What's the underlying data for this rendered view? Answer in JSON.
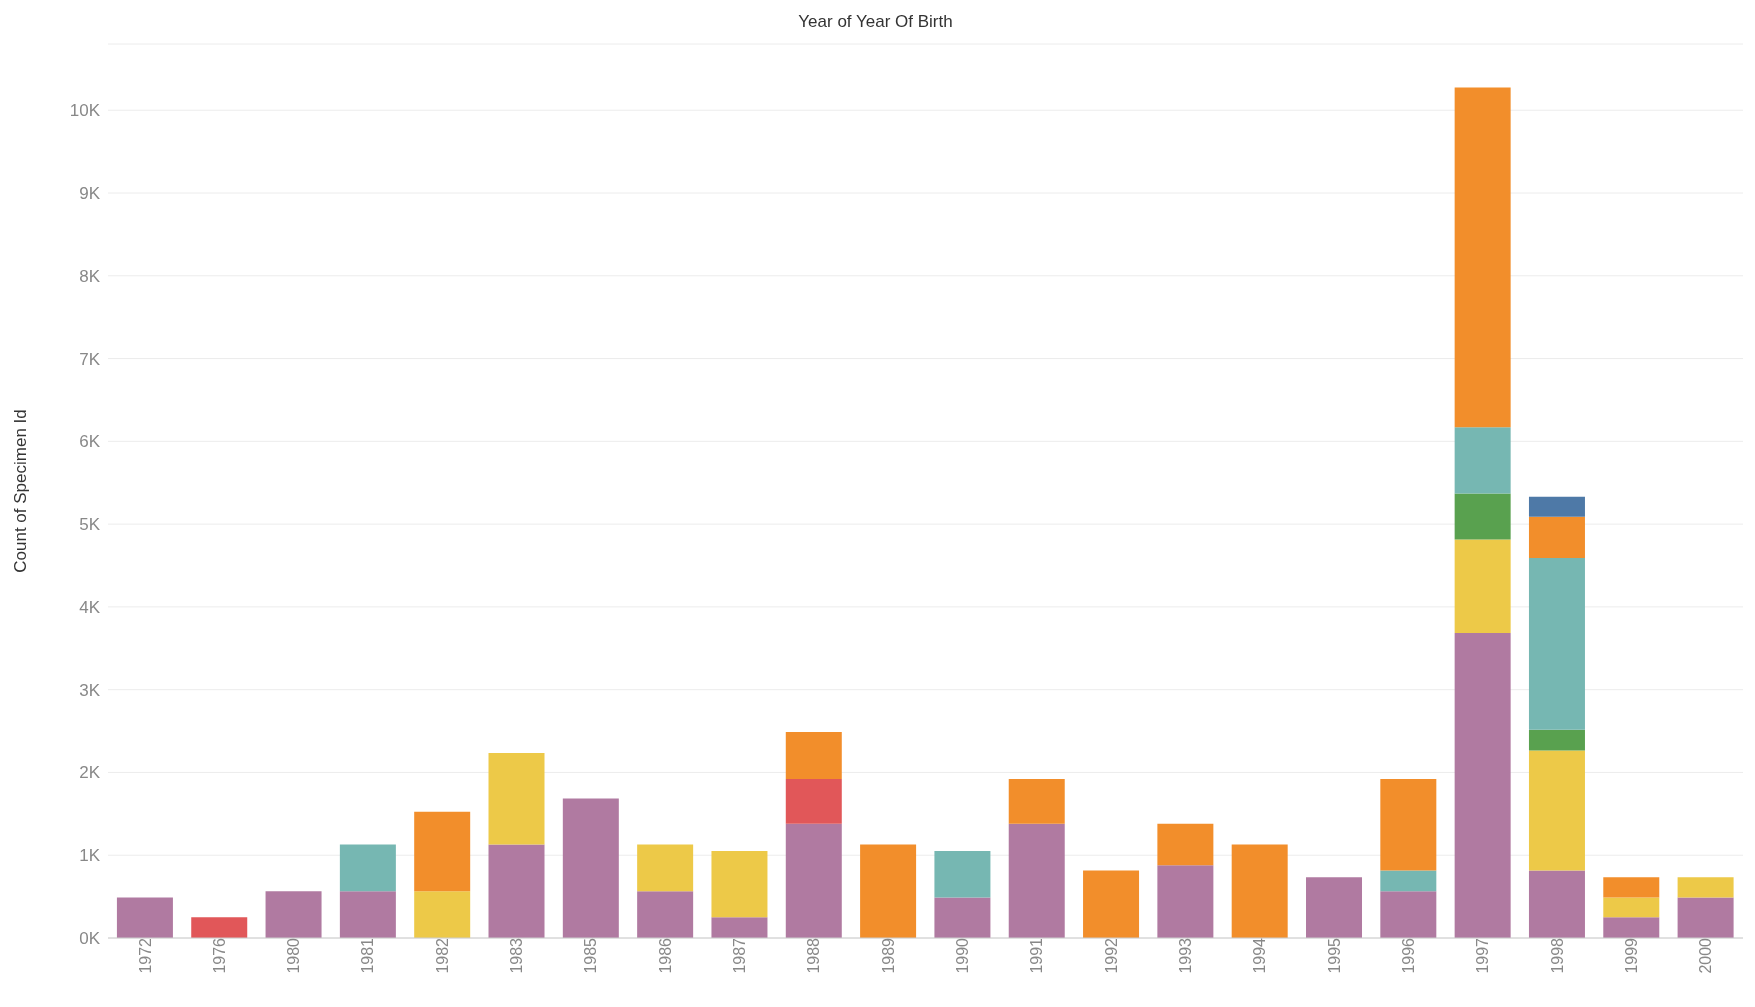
{
  "chart_data": {
    "type": "bar",
    "title": "Year of Year Of Birth",
    "ylabel": "Count of Specimen Id",
    "stacked": true,
    "grid": "y",
    "legend": false,
    "categories": [
      "1972",
      "1976",
      "1980",
      "1981",
      "1982",
      "1983",
      "1985",
      "1986",
      "1987",
      "1988",
      "1989",
      "1990",
      "1991",
      "1992",
      "1993",
      "1994",
      "1995",
      "1996",
      "1997",
      "1998",
      "1999",
      "2000"
    ],
    "series": [
      {
        "color": "#b07aa1",
        "values": [
          490,
          null,
          565,
          565,
          null,
          1130,
          1685,
          565,
          250,
          1380,
          null,
          490,
          1380,
          null,
          880,
          null,
          735,
          565,
          3685,
          815,
          250,
          490
        ]
      },
      {
        "color": "#e15759",
        "values": [
          null,
          250,
          null,
          null,
          null,
          null,
          null,
          null,
          null,
          540,
          null,
          null,
          null,
          null,
          null,
          null,
          null,
          null,
          null,
          null,
          null,
          null
        ]
      },
      {
        "color": "#edc948",
        "values": [
          null,
          null,
          null,
          null,
          565,
          1105,
          null,
          565,
          800,
          null,
          null,
          null,
          null,
          null,
          null,
          null,
          null,
          null,
          1130,
          1450,
          240,
          245
        ]
      },
      {
        "color": "#59a14f",
        "values": [
          null,
          null,
          null,
          null,
          null,
          null,
          null,
          null,
          null,
          null,
          null,
          null,
          null,
          null,
          null,
          null,
          null,
          null,
          555,
          250,
          null,
          null
        ]
      },
      {
        "color": "#76b7b2",
        "values": [
          null,
          null,
          null,
          565,
          null,
          null,
          null,
          null,
          null,
          null,
          null,
          560,
          null,
          null,
          null,
          null,
          null,
          250,
          800,
          2075,
          null,
          null
        ]
      },
      {
        "color": "#f28e2b",
        "values": [
          null,
          null,
          null,
          null,
          960,
          null,
          null,
          null,
          null,
          570,
          1130,
          null,
          540,
          815,
          500,
          1130,
          null,
          1105,
          4105,
          500,
          245,
          null
        ]
      },
      {
        "color": "#4e79a7",
        "values": [
          null,
          null,
          null,
          null,
          null,
          null,
          null,
          null,
          null,
          null,
          null,
          null,
          null,
          null,
          null,
          null,
          null,
          null,
          null,
          240,
          null,
          null
        ]
      }
    ],
    "ylim": [
      0,
      10800
    ],
    "yticks": [
      {
        "value": 0,
        "label": "0K"
      },
      {
        "value": 1000,
        "label": "1K"
      },
      {
        "value": 2000,
        "label": "2K"
      },
      {
        "value": 3000,
        "label": "3K"
      },
      {
        "value": 4000,
        "label": "4K"
      },
      {
        "value": 5000,
        "label": "5K"
      },
      {
        "value": 6000,
        "label": "6K"
      },
      {
        "value": 7000,
        "label": "7K"
      },
      {
        "value": 8000,
        "label": "8K"
      },
      {
        "value": 9000,
        "label": "9K"
      },
      {
        "value": 10000,
        "label": "10K"
      }
    ]
  }
}
